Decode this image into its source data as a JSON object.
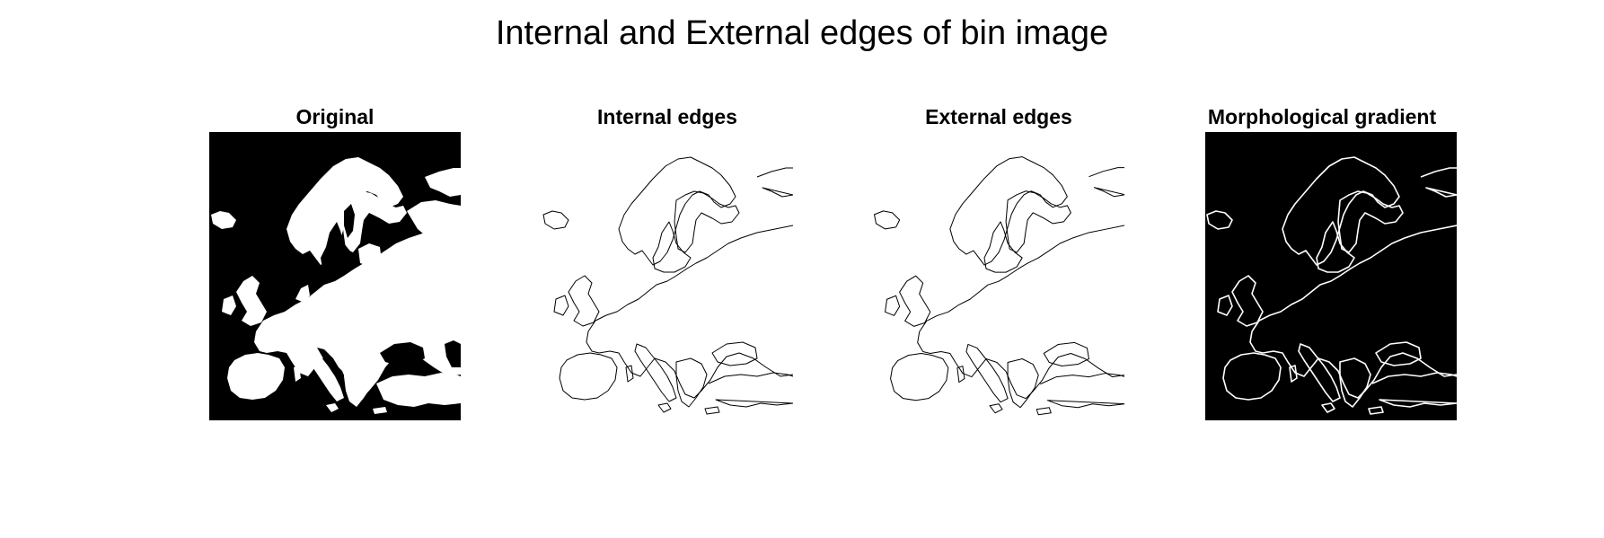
{
  "figure": {
    "title": "Internal and External edges of bin image"
  },
  "panels": [
    {
      "title": "Original",
      "style": "filled-white-on-black"
    },
    {
      "title": "Internal edges",
      "style": "outline-black-on-white"
    },
    {
      "title": "External edges",
      "style": "outline-black-on-white"
    },
    {
      "title": "Morphological gradient",
      "style": "outline-white-on-black"
    }
  ],
  "colors": {
    "background": "#ffffff",
    "land": "#ffffff",
    "sea": "#000000",
    "edge_dark": "#000000",
    "edge_light": "#ffffff"
  }
}
